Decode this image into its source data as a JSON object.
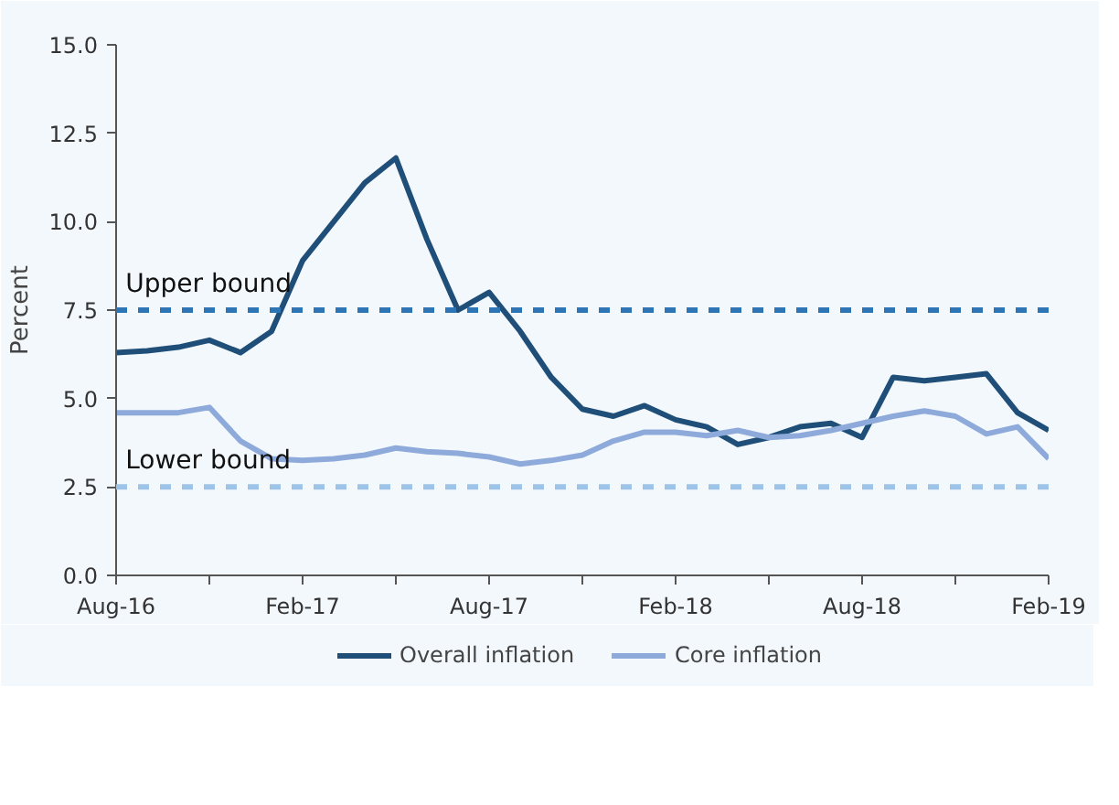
{
  "chart_data": {
    "type": "line",
    "ylabel": "Percent",
    "x": [
      "2016-08",
      "2016-09",
      "2016-10",
      "2016-11",
      "2016-12",
      "2017-01",
      "2017-02",
      "2017-03",
      "2017-04",
      "2017-05",
      "2017-06",
      "2017-07",
      "2017-08",
      "2017-09",
      "2017-10",
      "2017-11",
      "2017-12",
      "2018-01",
      "2018-02",
      "2018-03",
      "2018-04",
      "2018-05",
      "2018-06",
      "2018-07",
      "2018-08",
      "2018-09",
      "2018-10",
      "2018-11",
      "2018-12",
      "2019-01",
      "2019-02"
    ],
    "series": [
      {
        "name": "Overall inflation",
        "color": "#1f4e79",
        "values": [
          6.3,
          6.35,
          6.45,
          6.65,
          6.3,
          6.9,
          8.9,
          10.0,
          11.1,
          11.8,
          9.5,
          7.5,
          8.0,
          6.9,
          5.6,
          4.7,
          4.5,
          4.8,
          4.4,
          4.2,
          3.7,
          3.9,
          4.2,
          4.3,
          3.9,
          5.6,
          5.5,
          5.6,
          5.7,
          4.6,
          4.1
        ]
      },
      {
        "name": "Core inflation",
        "color": "#8eaadb",
        "values": [
          4.6,
          4.6,
          4.6,
          4.75,
          3.8,
          3.3,
          3.25,
          3.3,
          3.4,
          3.6,
          3.5,
          3.45,
          3.35,
          3.15,
          3.25,
          3.4,
          3.8,
          4.05,
          4.05,
          3.95,
          4.1,
          3.9,
          3.95,
          4.1,
          4.3,
          4.5,
          4.65,
          4.5,
          4.0,
          4.2,
          3.3
        ]
      }
    ],
    "xlim": [
      "2016-08",
      "2019-02"
    ],
    "xticks": [
      {
        "value": "2016-08",
        "label": "Aug-16"
      },
      {
        "value": "2016-11",
        "label": null
      },
      {
        "value": "2017-02",
        "label": "Feb-17"
      },
      {
        "value": "2017-05",
        "label": null
      },
      {
        "value": "2017-08",
        "label": "Aug-17"
      },
      {
        "value": "2017-11",
        "label": null
      },
      {
        "value": "2018-02",
        "label": "Feb-18"
      },
      {
        "value": "2018-05",
        "label": null
      },
      {
        "value": "2018-08",
        "label": "Aug-18"
      },
      {
        "value": "2018-11",
        "label": null
      },
      {
        "value": "2019-02",
        "label": "Feb-19"
      }
    ],
    "ylim": [
      0,
      15
    ],
    "yticks": [
      {
        "value": 0,
        "label": "0.0"
      },
      {
        "value": 2.5,
        "label": "2.5"
      },
      {
        "value": 5,
        "label": "5.0"
      },
      {
        "value": 7.5,
        "label": "7.5"
      },
      {
        "value": 10,
        "label": "10.0"
      },
      {
        "value": 12.5,
        "label": "12.5"
      },
      {
        "value": 15,
        "label": "15.0"
      }
    ],
    "ref_lines": [
      {
        "axis": "y",
        "value": 7.5,
        "label": "Upper bound",
        "color": "#2e75b6",
        "line_style": "dashed"
      },
      {
        "axis": "y",
        "value": 2.5,
        "label": "Lower bound",
        "color": "#9dc3e6",
        "line_style": "dashed"
      }
    ],
    "grid": false,
    "legend": "bottom",
    "marker": "none",
    "line_style": "solid"
  }
}
